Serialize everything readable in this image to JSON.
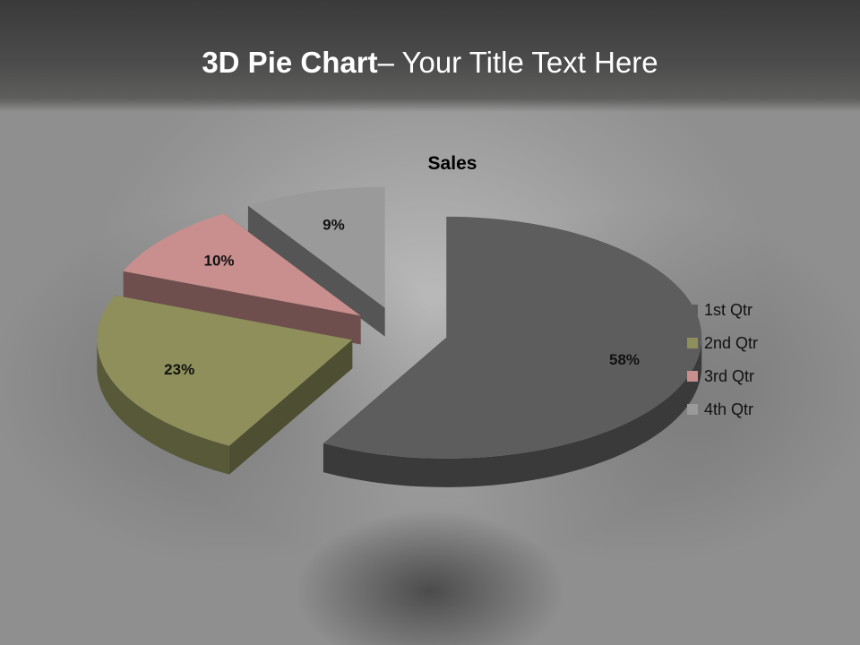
{
  "slide": {
    "title_bold": "3D Pie Chart",
    "title_rest": "– Your Title Text Here"
  },
  "chart_data": {
    "type": "pie",
    "title": "Sales",
    "categories": [
      "1st Qtr",
      "2nd Qtr",
      "3rd Qtr",
      "4th Qtr"
    ],
    "values": [
      58,
      23,
      10,
      9
    ],
    "labels": [
      "58%",
      "23%",
      "10%",
      "9%"
    ],
    "colors": [
      "#5d5d5d",
      "#8e8f5a",
      "#c98e8e",
      "#9a9a9a"
    ],
    "exploded": true,
    "three_d": true,
    "legend_position": "right"
  }
}
